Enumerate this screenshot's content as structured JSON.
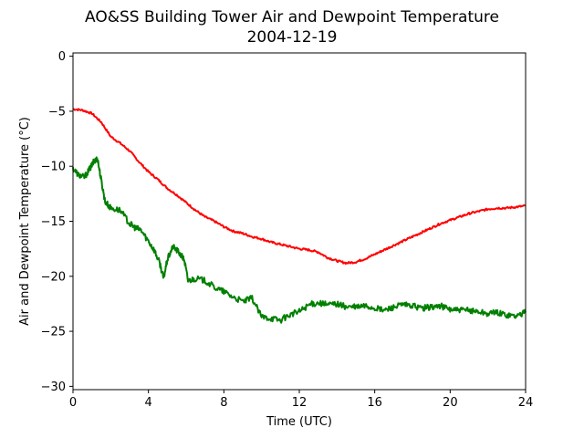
{
  "chart_data": {
    "type": "line",
    "title": "AO&SS Building Tower Air and Dewpoint Temperature",
    "subtitle": "2004-12-19",
    "xlabel": "Time (UTC)",
    "ylabel": "Air and Dewpoint Temperature (°C)",
    "xlim": [
      0,
      24
    ],
    "ylim": [
      -30.3,
      0.3
    ],
    "xticks": [
      0,
      4,
      8,
      12,
      16,
      20,
      24
    ],
    "xtick_labels": [
      "0",
      "4",
      "8",
      "12",
      "16",
      "20",
      "24"
    ],
    "yticks": [
      0,
      -5,
      -10,
      -15,
      -20,
      -25,
      -30
    ],
    "ytick_labels": [
      "0",
      "−5",
      "−10",
      "−15",
      "−20",
      "−25",
      "−30"
    ],
    "grid": false,
    "series": [
      {
        "color": "#ff0000",
        "x": [
          0,
          0.5,
          1,
          1.5,
          2,
          2.5,
          3,
          3.5,
          4,
          4.5,
          5,
          5.5,
          6,
          6.5,
          7,
          7.5,
          8,
          8.5,
          9,
          9.5,
          10,
          10.5,
          11,
          11.5,
          12,
          12.5,
          13,
          13.5,
          14,
          14.5,
          15,
          15.5,
          16,
          16.5,
          17,
          17.5,
          18,
          18.5,
          19,
          19.5,
          20,
          20.5,
          21,
          21.5,
          22,
          22.5,
          23,
          23.5,
          24
        ],
        "y": [
          -4.8,
          -4.9,
          -5.2,
          -6.0,
          -7.3,
          -7.9,
          -8.6,
          -9.6,
          -10.5,
          -11.2,
          -12.0,
          -12.6,
          -13.3,
          -14.0,
          -14.6,
          -15.0,
          -15.5,
          -15.9,
          -16.1,
          -16.4,
          -16.6,
          -16.9,
          -17.1,
          -17.3,
          -17.5,
          -17.6,
          -17.8,
          -18.3,
          -18.6,
          -18.8,
          -18.7,
          -18.4,
          -18.0,
          -17.6,
          -17.2,
          -16.8,
          -16.4,
          -16.0,
          -15.6,
          -15.2,
          -14.9,
          -14.6,
          -14.3,
          -14.1,
          -13.9,
          -13.8,
          -13.8,
          -13.7,
          -13.6
        ]
      },
      {
        "color": "#008000",
        "x": [
          0,
          0.3,
          0.6,
          0.9,
          1.1,
          1.3,
          1.5,
          1.7,
          2,
          2.5,
          3,
          3.3,
          3.6,
          4,
          4.3,
          4.6,
          4.8,
          5,
          5.3,
          5.6,
          5.9,
          6.1,
          6.5,
          7,
          7.5,
          8,
          8.5,
          9,
          9.5,
          10,
          10.5,
          11,
          11.5,
          12,
          12.5,
          13,
          13.5,
          14,
          14.5,
          15,
          15.5,
          16,
          16.5,
          17,
          17.5,
          18,
          18.5,
          19,
          19.5,
          20,
          20.5,
          21,
          21.5,
          22,
          22.5,
          23,
          23.5,
          24
        ],
        "y": [
          -10.2,
          -10.8,
          -11.0,
          -10.2,
          -9.6,
          -9.3,
          -11.3,
          -13.2,
          -13.8,
          -14.0,
          -15.2,
          -15.6,
          -15.8,
          -16.8,
          -17.6,
          -18.8,
          -20.2,
          -18.5,
          -17.3,
          -17.8,
          -18.5,
          -20.4,
          -20.2,
          -20.4,
          -21.0,
          -21.4,
          -21.9,
          -22.3,
          -22.0,
          -23.7,
          -23.8,
          -24.0,
          -23.5,
          -23.2,
          -22.6,
          -22.4,
          -22.6,
          -22.5,
          -22.8,
          -22.8,
          -22.7,
          -22.9,
          -23.1,
          -22.8,
          -22.6,
          -22.7,
          -22.9,
          -22.8,
          -22.7,
          -23.0,
          -23.1,
          -23.1,
          -23.2,
          -23.4,
          -23.3,
          -23.5,
          -23.6,
          -23.3
        ]
      }
    ]
  }
}
